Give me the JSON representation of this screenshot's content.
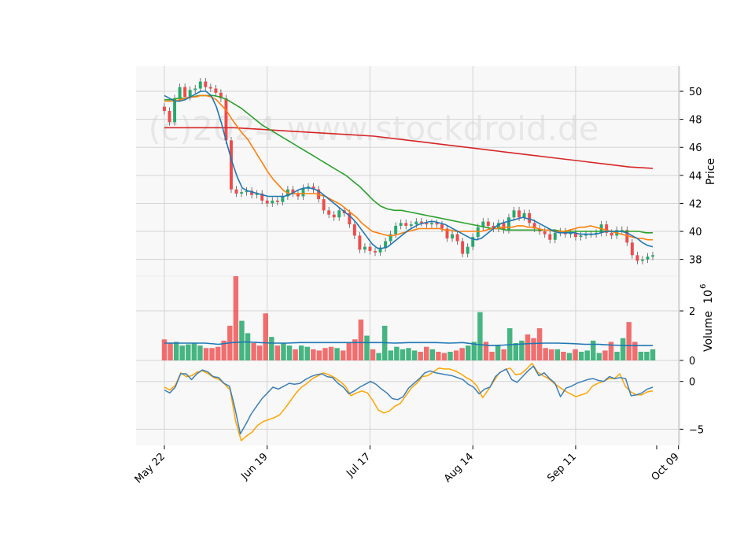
{
  "watermark": "(c)2024 www.stockdroid.de",
  "colors": {
    "up": "#26a96c",
    "down": "#ef4b4b",
    "ma_fast": "#1f77b4",
    "ma_mid": "#ff7f0e",
    "ma_slow": "#2ca02c",
    "ma_long": "#d62728",
    "macd": "#3d7fb8",
    "signal": "#ffa500",
    "panel_bg": "#f8f8f8",
    "grid": "#d4d4d4"
  },
  "chart_data": [
    {
      "type": "candlestick",
      "panel": "price",
      "ylabel": "Price",
      "ylim": [
        36.8,
        51.8
      ],
      "yticks": [
        38,
        40,
        42,
        44,
        46,
        48,
        50
      ],
      "grid": true,
      "x_tick_labels": [
        "May 22",
        "Jun 19",
        "Jul 17",
        "Aug 14",
        "Sep 11",
        "Oct 09"
      ],
      "x_tick_index": [
        0,
        20,
        40,
        60,
        80,
        100
      ],
      "close": [
        48.6,
        47.8,
        49.5,
        50.3,
        49.6,
        50.1,
        50.2,
        50.7,
        50.3,
        50.2,
        49.9,
        49.5,
        46.5,
        43.0,
        42.7,
        42.8,
        42.9,
        42.6,
        42.7,
        42.2,
        42.0,
        42.2,
        42.1,
        42.5,
        43.0,
        42.7,
        42.5,
        43.1,
        43.2,
        43.0,
        42.3,
        41.5,
        41.2,
        41.0,
        41.5,
        41.3,
        40.5,
        39.7,
        38.7,
        38.9,
        38.6,
        38.5,
        38.8,
        39.3,
        39.8,
        40.4,
        40.6,
        40.4,
        40.5,
        40.7,
        40.6,
        40.5,
        40.6,
        40.5,
        40.2,
        39.5,
        39.8,
        39.3,
        38.4,
        38.9,
        39.6,
        40.3,
        40.7,
        40.4,
        40.2,
        40.6,
        40.1,
        41.0,
        41.5,
        41.0,
        41.3,
        40.6,
        40.2,
        40.0,
        39.8,
        39.4,
        39.9,
        40.0,
        39.8,
        39.9,
        39.6,
        39.7,
        39.8,
        39.8,
        39.9,
        40.5,
        39.9,
        39.7,
        40.1,
        40.1,
        39.2,
        38.3,
        37.9,
        38.0,
        38.2,
        38.3
      ],
      "ma_fast": [
        49.7,
        49.5,
        49.3,
        49.3,
        49.4,
        49.6,
        49.8,
        50.0,
        50.0,
        49.7,
        48.9,
        47.7,
        46.3,
        45.0,
        43.9,
        43.1,
        42.9,
        42.8,
        42.7,
        42.6,
        42.5,
        42.5,
        42.5,
        42.5,
        42.6,
        42.8,
        43.0,
        43.1,
        43.1,
        43.0,
        42.8,
        42.5,
        42.2,
        41.9,
        41.6,
        41.3,
        41.0,
        40.6,
        40.1,
        39.6,
        39.1,
        38.8,
        38.8,
        38.9,
        39.2,
        39.5,
        39.8,
        40.1,
        40.3,
        40.5,
        40.6,
        40.7,
        40.7,
        40.6,
        40.5,
        40.3,
        40.1,
        39.9,
        39.7,
        39.5,
        39.4,
        39.5,
        39.8,
        40.1,
        40.4,
        40.6,
        40.7,
        40.8,
        40.9,
        41.0,
        40.9,
        40.8,
        40.6,
        40.4,
        40.2,
        40.0,
        39.9,
        39.9,
        39.9,
        39.9,
        39.8,
        39.8,
        39.8,
        39.8,
        39.9,
        40.0,
        40.0,
        40.0,
        40.0,
        39.9,
        39.7,
        39.5,
        39.2,
        39.0,
        38.9
      ],
      "ma_mid": [
        49.3,
        49.3,
        49.3,
        49.4,
        49.5,
        49.6,
        49.6,
        49.7,
        49.7,
        49.6,
        49.4,
        49.0,
        48.6,
        48.0,
        47.5,
        47.0,
        46.6,
        46.0,
        45.4,
        44.8,
        44.2,
        43.7,
        43.3,
        42.9,
        42.7,
        42.7,
        42.7,
        42.7,
        42.7,
        42.7,
        42.6,
        42.5,
        42.3,
        42.1,
        41.9,
        41.6,
        41.3,
        41.0,
        40.6,
        40.3,
        40.0,
        39.9,
        39.8,
        39.7,
        39.7,
        39.8,
        39.9,
        40.0,
        40.1,
        40.2,
        40.2,
        40.2,
        40.2,
        40.2,
        40.1,
        40.1,
        40.0,
        40.0,
        40.0,
        40.0,
        40.0,
        40.0,
        40.1,
        40.2,
        40.2,
        40.3,
        40.3,
        40.3,
        40.4,
        40.4,
        40.3,
        40.3,
        40.2,
        40.1,
        40.1,
        40.0,
        40.0,
        40.0,
        40.1,
        40.2,
        40.3,
        40.3,
        40.4,
        40.3,
        40.2,
        40.1,
        40.0,
        39.9,
        39.8,
        39.7,
        39.6,
        39.5,
        39.5,
        39.4,
        39.4
      ],
      "ma_slow": [
        49.4,
        49.4,
        49.5,
        49.5,
        49.6,
        49.7,
        49.7,
        49.7,
        49.6,
        49.4,
        49.1,
        48.8,
        48.4,
        48.0,
        47.6,
        47.3,
        47.0,
        46.7,
        46.4,
        46.1,
        45.8,
        45.5,
        45.2,
        44.9,
        44.6,
        44.3,
        44.0,
        43.6,
        43.2,
        42.7,
        42.2,
        41.8,
        41.6,
        41.5,
        41.5,
        41.4,
        41.3,
        41.2,
        41.1,
        41.0,
        40.9,
        40.8,
        40.7,
        40.6,
        40.5,
        40.4,
        40.3,
        40.2,
        40.2,
        40.1,
        40.1,
        40.1,
        40.1,
        40.1,
        40.1,
        40.1,
        40.1,
        40.0,
        40.0,
        40.0,
        40.0,
        40.0,
        40.0,
        40.0,
        40.0,
        40.0,
        40.0,
        40.0,
        40.0,
        39.9,
        39.9
      ],
      "ma_long": [
        47.4,
        47.4,
        47.4,
        47.4,
        47.3,
        47.2,
        47.1,
        47.0,
        46.9,
        46.8,
        46.6,
        46.4,
        46.2,
        46.0,
        45.8,
        45.6,
        45.4,
        45.2,
        45.0,
        44.8,
        44.6,
        44.5
      ]
    },
    {
      "type": "bar",
      "panel": "volume",
      "ylabel": "Volume",
      "unit_exponent": "6",
      "ylim": [
        0,
        3.4
      ],
      "yticks": [
        0,
        2
      ],
      "volume_millions": [
        0.85,
        0.7,
        0.75,
        0.6,
        0.65,
        0.7,
        0.6,
        0.5,
        0.5,
        0.55,
        0.8,
        1.4,
        3.4,
        1.6,
        1.1,
        0.7,
        0.6,
        1.9,
        0.95,
        0.6,
        0.7,
        0.6,
        0.45,
        0.6,
        0.55,
        0.45,
        0.4,
        0.5,
        0.55,
        0.5,
        0.4,
        0.7,
        0.85,
        1.65,
        1.0,
        0.45,
        0.3,
        1.4,
        0.4,
        0.55,
        0.45,
        0.5,
        0.4,
        0.35,
        0.55,
        0.45,
        0.35,
        0.3,
        0.35,
        0.4,
        0.5,
        0.6,
        0.75,
        1.95,
        0.75,
        0.35,
        0.6,
        0.45,
        1.3,
        0.7,
        0.8,
        1.05,
        0.9,
        1.3,
        0.5,
        0.45,
        0.45,
        0.35,
        0.3,
        0.45,
        0.35,
        0.4,
        0.8,
        0.3,
        0.4,
        0.75,
        0.35,
        0.9,
        1.55,
        0.75,
        0.35,
        0.35,
        0.45
      ],
      "volume_ma": [
        0.7,
        0.7,
        0.7,
        0.7,
        0.65,
        0.72,
        0.75,
        0.72,
        0.7,
        0.7,
        0.72,
        0.72,
        0.72,
        0.72,
        0.72,
        0.72,
        0.72,
        0.7,
        0.72,
        0.72,
        0.72,
        0.7,
        0.72,
        0.65,
        0.6,
        0.62,
        0.65,
        0.68,
        0.7,
        0.7,
        0.68,
        0.65,
        0.65,
        0.62,
        0.6,
        0.6,
        0.6
      ]
    },
    {
      "type": "line",
      "panel": "oscillator",
      "ylim": [
        -6.7,
        2.2
      ],
      "yticks": [
        -5,
        0
      ],
      "series": [
        {
          "key": "macd",
          "values": [
            -0.9,
            -1.2,
            -0.6,
            0.8,
            0.8,
            0.2,
            0.8,
            1.2,
            1.0,
            0.5,
            0.4,
            -0.2,
            -0.5,
            -2.8,
            -5.5,
            -4.5,
            -3.4,
            -2.6,
            -1.8,
            -1.2,
            -0.6,
            -0.8,
            -0.5,
            -0.2,
            -0.3,
            -0.2,
            0.2,
            0.5,
            0.7,
            0.8,
            0.5,
            0.4,
            -0.2,
            -0.6,
            -1.3,
            -1.0,
            -0.6,
            -0.3,
            0.0,
            -0.3,
            -0.8,
            -1.2,
            -1.8,
            -1.9,
            -1.6,
            -0.7,
            -0.2,
            0.3,
            0.9,
            1.1,
            0.9,
            0.8,
            0.7,
            0.6,
            0.4,
            0.2,
            -0.3,
            -0.6,
            -1.3,
            -0.8,
            -0.6,
            0.5,
            1.0,
            1.3,
            0.2,
            -0.1,
            0.5,
            1.1,
            1.6,
            0.6,
            0.9,
            0.3,
            -0.2,
            -1.6,
            -0.7,
            -0.5,
            -0.2,
            0.0,
            0.2,
            0.3,
            0.1,
            0.0,
            0.5,
            0.3,
            0.4,
            0.3,
            -1.5,
            -1.4,
            -1.2,
            -0.8,
            -0.6
          ]
        },
        {
          "key": "signal",
          "values": [
            -0.6,
            -0.9,
            -0.4,
            0.9,
            0.5,
            0.6,
            1.0,
            1.1,
            0.8,
            0.4,
            0.2,
            -0.3,
            -0.9,
            -4.2,
            -6.2,
            -5.7,
            -5.3,
            -4.6,
            -4.2,
            -4.0,
            -3.8,
            -3.5,
            -2.8,
            -2.0,
            -1.2,
            -0.6,
            -0.2,
            0.3,
            0.6,
            0.9,
            0.7,
            0.4,
            0.0,
            -0.5,
            -1.5,
            -1.2,
            -1.0,
            -1.2,
            -2.0,
            -3.0,
            -3.3,
            -3.1,
            -2.6,
            -2.3,
            -1.5,
            -0.7,
            -0.2,
            0.5,
            0.6,
            1.0,
            1.4,
            1.3,
            1.3,
            1.1,
            0.8,
            0.4,
            0.1,
            -0.5,
            -1.7,
            -0.9,
            0.0,
            0.9,
            1.2,
            1.4,
            0.7,
            0.8,
            1.3,
            1.9,
            1.0,
            0.6,
            0.3,
            -0.2,
            -0.6,
            -1.0,
            -1.3,
            -1.6,
            -1.4,
            -1.2,
            -0.5,
            -0.2,
            0.0,
            0.3,
            0.3,
            0.8,
            -0.5,
            -1.1,
            -1.4,
            -1.4,
            -1.1,
            -1.0
          ]
        }
      ]
    }
  ]
}
